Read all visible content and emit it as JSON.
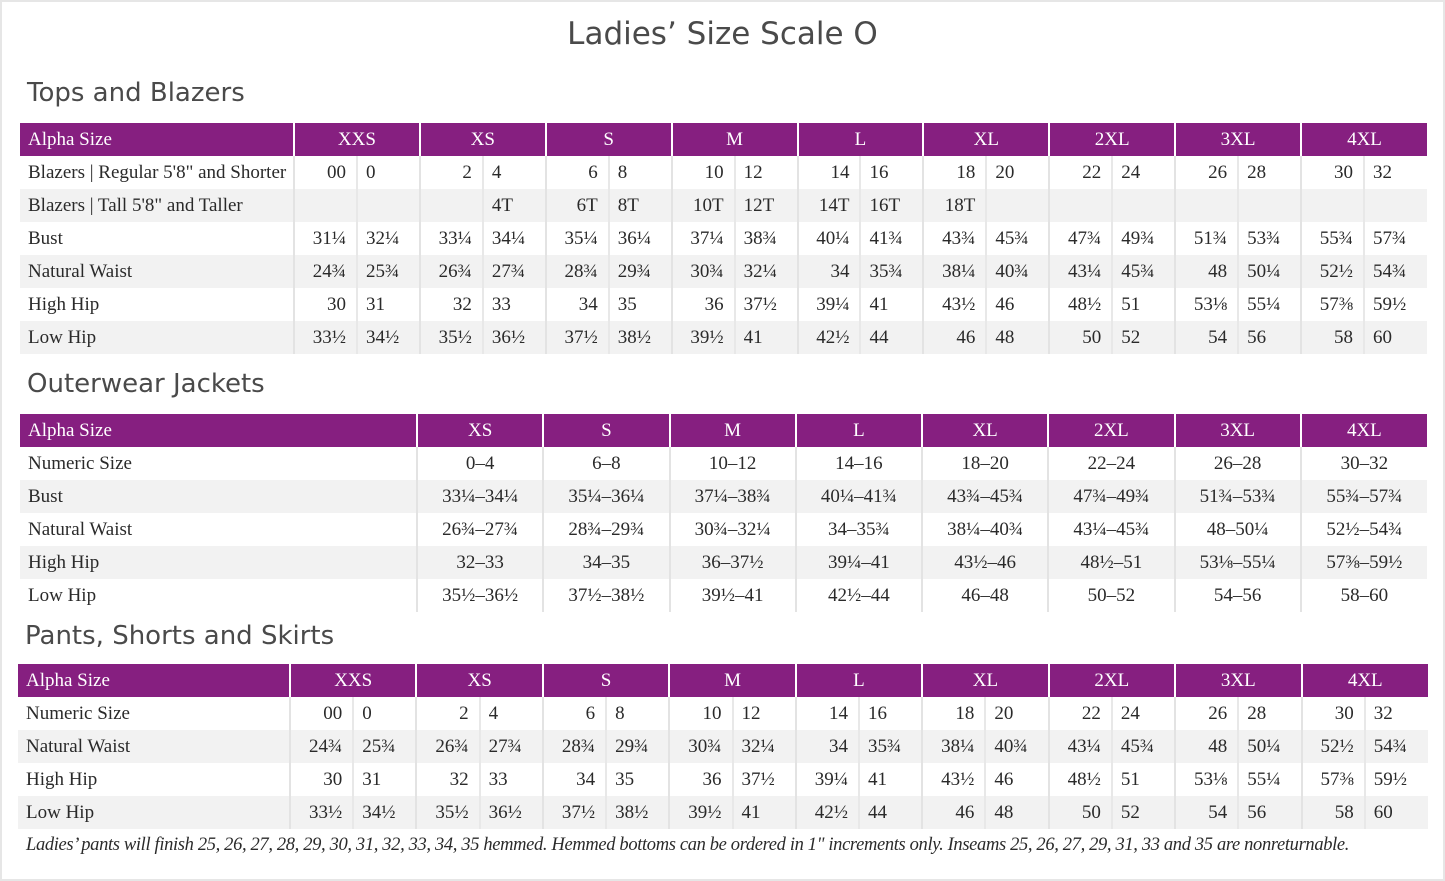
{
  "title": "Ladies’ Size Scale O",
  "colors": {
    "header": "#861f80",
    "alt_row": "#f2f2f2"
  },
  "tops": {
    "section": "Tops and Blazers",
    "header_label": "Alpha Size",
    "sizes": [
      "XXS",
      "XS",
      "S",
      "M",
      "L",
      "XL",
      "2XL",
      "3XL",
      "4XL"
    ],
    "rows": [
      {
        "label": "Blazers | Regular 5'8\" and Shorter",
        "values": [
          "00",
          "0",
          "2",
          "4",
          "6",
          "8",
          "10",
          "12",
          "14",
          "16",
          "18",
          "20",
          "22",
          "24",
          "26",
          "28",
          "30",
          "32"
        ]
      },
      {
        "label": "Blazers | Tall 5'8\" and Taller",
        "values": [
          "",
          "",
          "",
          "4T",
          "6T",
          "8T",
          "10T",
          "12T",
          "14T",
          "16T",
          "18T",
          "",
          "",
          "",
          "",
          "",
          "",
          ""
        ]
      },
      {
        "label": "Bust",
        "values": [
          "31¼",
          "32¼",
          "33¼",
          "34¼",
          "35¼",
          "36¼",
          "37¼",
          "38¾",
          "40¼",
          "41¾",
          "43¾",
          "45¾",
          "47¾",
          "49¾",
          "51¾",
          "53¾",
          "55¾",
          "57¾"
        ]
      },
      {
        "label": "Natural Waist",
        "values": [
          "24¾",
          "25¾",
          "26¾",
          "27¾",
          "28¾",
          "29¾",
          "30¾",
          "32¼",
          "34",
          "35¾",
          "38¼",
          "40¾",
          "43¼",
          "45¾",
          "48",
          "50¼",
          "52½",
          "54¾"
        ]
      },
      {
        "label": "High Hip",
        "values": [
          "30",
          "31",
          "32",
          "33",
          "34",
          "35",
          "36",
          "37½",
          "39¼",
          "41",
          "43½",
          "46",
          "48½",
          "51",
          "53⅛",
          "55¼",
          "57⅜",
          "59½"
        ]
      },
      {
        "label": "Low Hip",
        "values": [
          "33½",
          "34½",
          "35½",
          "36½",
          "37½",
          "38½",
          "39½",
          "41",
          "42½",
          "44",
          "46",
          "48",
          "50",
          "52",
          "54",
          "56",
          "58",
          "60"
        ]
      }
    ]
  },
  "outerwear": {
    "section": "Outerwear Jackets",
    "header_label": "Alpha Size",
    "sizes": [
      "XS",
      "S",
      "M",
      "L",
      "XL",
      "2XL",
      "3XL",
      "4XL"
    ],
    "rows": [
      {
        "label": "Numeric Size",
        "values": [
          "0–4",
          "6–8",
          "10–12",
          "14–16",
          "18–20",
          "22–24",
          "26–28",
          "30–32"
        ]
      },
      {
        "label": "Bust",
        "values": [
          "33¼–34¼",
          "35¼–36¼",
          "37¼–38¾",
          "40¼–41¾",
          "43¾–45¾",
          "47¾–49¾",
          "51¾–53¾",
          "55¾–57¾"
        ]
      },
      {
        "label": "Natural Waist",
        "values": [
          "26¾–27¾",
          "28¾–29¾",
          "30¾–32¼",
          "34–35¾",
          "38¼–40¾",
          "43¼–45¾",
          "48–50¼",
          "52½–54¾"
        ]
      },
      {
        "label": "High Hip",
        "values": [
          "32–33",
          "34–35",
          "36–37½",
          "39¼–41",
          "43½–46",
          "48½–51",
          "53⅛–55¼",
          "57⅜–59½"
        ]
      },
      {
        "label": "Low Hip",
        "values": [
          "35½–36½",
          "37½–38½",
          "39½–41",
          "42½–44",
          "46–48",
          "50–52",
          "54–56",
          "58–60"
        ]
      }
    ]
  },
  "pants": {
    "section": "Pants, Shorts and Skirts",
    "header_label": "Alpha Size",
    "sizes": [
      "XXS",
      "XS",
      "S",
      "M",
      "L",
      "XL",
      "2XL",
      "3XL",
      "4XL"
    ],
    "rows": [
      {
        "label": "Numeric Size",
        "values": [
          "00",
          "0",
          "2",
          "4",
          "6",
          "8",
          "10",
          "12",
          "14",
          "16",
          "18",
          "20",
          "22",
          "24",
          "26",
          "28",
          "30",
          "32"
        ]
      },
      {
        "label": "Natural Waist",
        "values": [
          "24¾",
          "25¾",
          "26¾",
          "27¾",
          "28¾",
          "29¾",
          "30¾",
          "32¼",
          "34",
          "35¾",
          "38¼",
          "40¾",
          "43¼",
          "45¾",
          "48",
          "50¼",
          "52½",
          "54¾"
        ]
      },
      {
        "label": "High Hip",
        "values": [
          "30",
          "31",
          "32",
          "33",
          "34",
          "35",
          "36",
          "37½",
          "39¼",
          "41",
          "43½",
          "46",
          "48½",
          "51",
          "53⅛",
          "55¼",
          "57⅜",
          "59½"
        ]
      },
      {
        "label": "Low Hip",
        "values": [
          "33½",
          "34½",
          "35½",
          "36½",
          "37½",
          "38½",
          "39½",
          "41",
          "42½",
          "44",
          "46",
          "48",
          "50",
          "52",
          "54",
          "56",
          "58",
          "60"
        ]
      }
    ],
    "note": "Ladies’ pants will finish 25, 26, 27, 28, 29, 30, 31, 32, 33, 34, 35 hemmed. Hemmed bottoms can be ordered in 1\" increments only. Inseams 25, 26, 27, 29, 31, 33 and 35 are nonreturnable."
  }
}
